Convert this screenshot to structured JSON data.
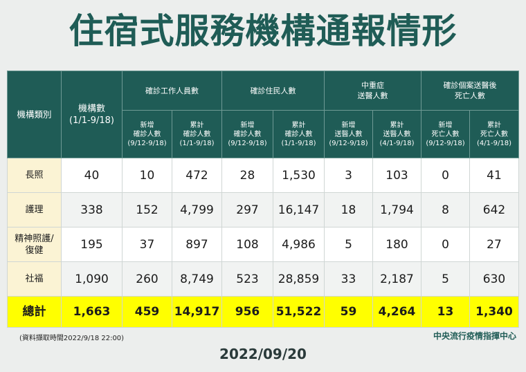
{
  "title": "住宿式服務機構通報情形",
  "table": {
    "header_top": {
      "category": "機構類別",
      "institutions": "機構數\n(1/1-9/18)",
      "staff": "確診工作人員數",
      "residents": "確診住民人數",
      "severe": "中重症\n送醫人數",
      "deaths": "確診個案送醫後\n死亡人數"
    },
    "header_sub": {
      "staff_new": "新增\n確診人數\n(9/12-9/18)",
      "staff_total": "累計\n確診人數\n(1/1-9/18)",
      "res_new": "新增\n確診人數\n(9/12-9/18)",
      "res_total": "累計\n確診人數\n(1/1-9/18)",
      "sev_new": "新增\n送醫人數\n(9/12-9/18)",
      "sev_total": "累計\n送醫人數\n(4/1-9/18)",
      "death_new": "新增\n死亡人數\n(9/12-9/18)",
      "death_total": "累計\n死亡人數\n(4/1-9/18)"
    },
    "rows": [
      {
        "label": "長照",
        "values": [
          "40",
          "10",
          "472",
          "28",
          "1,530",
          "3",
          "103",
          "0",
          "41"
        ]
      },
      {
        "label": "護理",
        "values": [
          "338",
          "152",
          "4,799",
          "297",
          "16,147",
          "18",
          "1,794",
          "8",
          "642"
        ]
      },
      {
        "label": "精神照護/\n復健",
        "values": [
          "195",
          "37",
          "897",
          "108",
          "4,986",
          "5",
          "180",
          "0",
          "27"
        ]
      },
      {
        "label": "社福",
        "values": [
          "1,090",
          "260",
          "8,749",
          "523",
          "28,859",
          "33",
          "2,187",
          "5",
          "630"
        ]
      },
      {
        "label": "總計",
        "values": [
          "1,663",
          "459",
          "14,917",
          "956",
          "51,522",
          "59",
          "4,264",
          "13",
          "1,340"
        ]
      }
    ]
  },
  "note": "(資料擷取時間2022/9/18 22:00)",
  "agency": "中央流行疫情指揮中心",
  "date": "2022/09/20",
  "colors": {
    "header": "#1f5c56",
    "total_row": "#ffff00",
    "label_cell": "#fbf3d4"
  }
}
